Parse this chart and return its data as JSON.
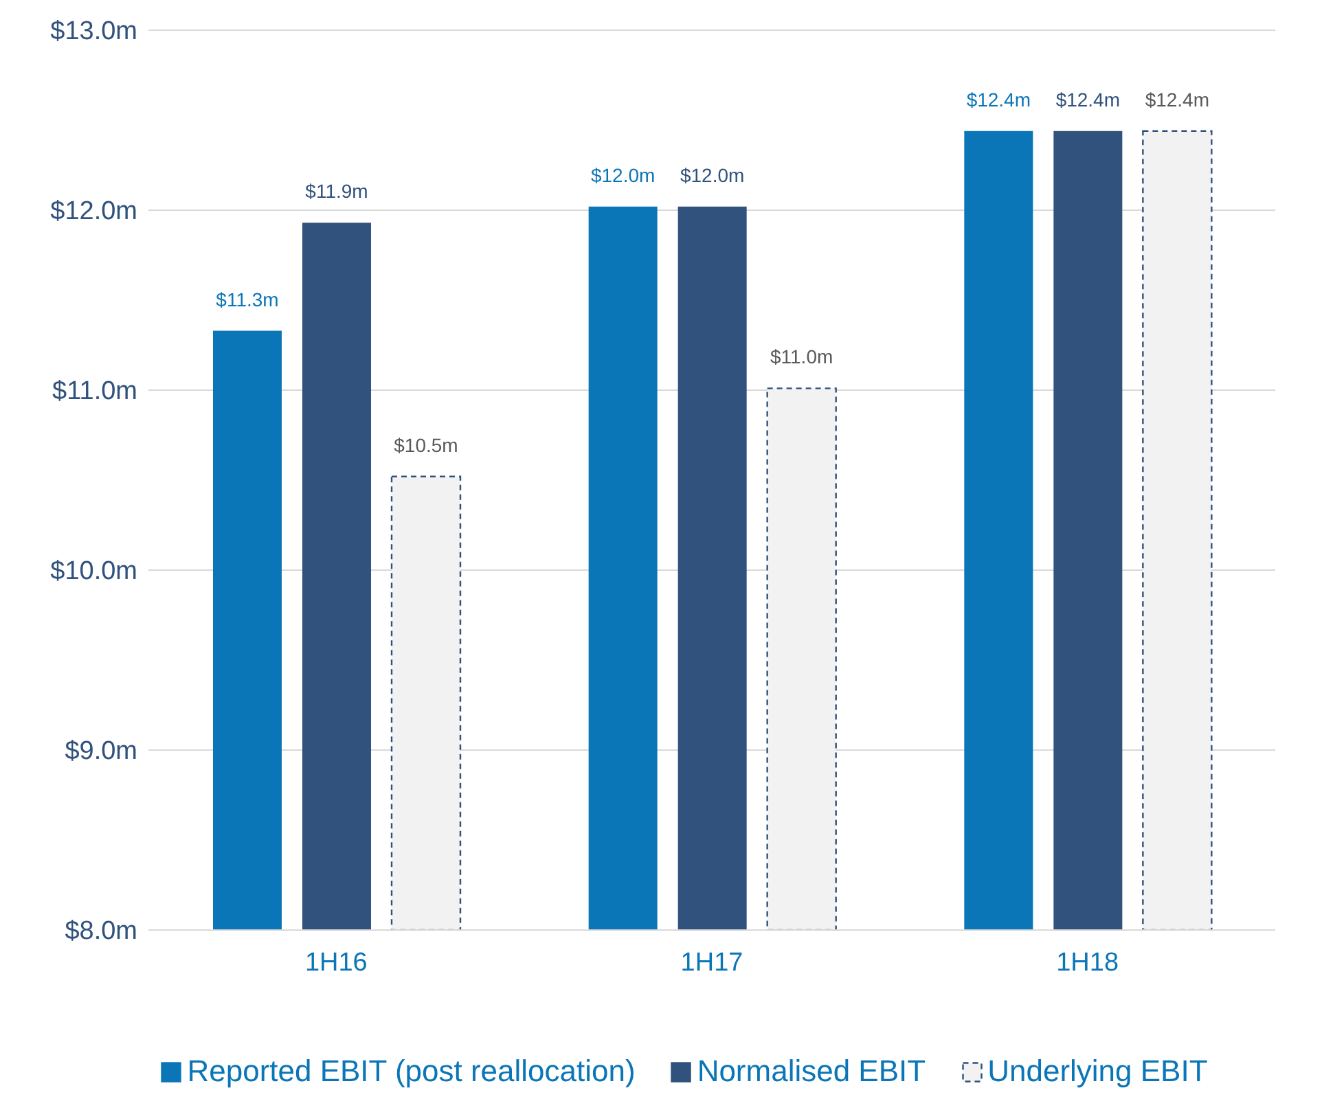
{
  "chart_data": {
    "type": "bar",
    "categories": [
      "1H16",
      "1H17",
      "1H18"
    ],
    "series": [
      {
        "name": "Reported EBIT (post reallocation)",
        "color": "#0b76b7",
        "values": [
          11.33,
          12.02,
          12.44
        ],
        "value_labels": [
          "$11.3m",
          "$12.0m",
          "$12.4m"
        ]
      },
      {
        "name": "Normalised EBIT",
        "color": "#30527c",
        "values": [
          11.93,
          12.02,
          12.44
        ],
        "value_labels": [
          "$11.9m",
          "$12.0m",
          "$12.4m"
        ]
      },
      {
        "name": "Underlying EBIT",
        "color": "#f2f2f2",
        "line_style": "dashed",
        "values": [
          10.52,
          11.01,
          12.44
        ],
        "value_labels": [
          "$10.5m",
          "$11.0m",
          "$12.4m"
        ]
      }
    ],
    "ylim": [
      8,
      13
    ],
    "yticks": [
      {
        "value": 8,
        "label": "$8.0m"
      },
      {
        "value": 9,
        "label": "$9.0m"
      },
      {
        "value": 10,
        "label": "$10.0m"
      },
      {
        "value": 11,
        "label": "$11.0m"
      },
      {
        "value": 12,
        "label": "$12.0m"
      },
      {
        "value": 13,
        "label": "$13.0m"
      }
    ],
    "grid": "y",
    "legend": "bottom"
  }
}
